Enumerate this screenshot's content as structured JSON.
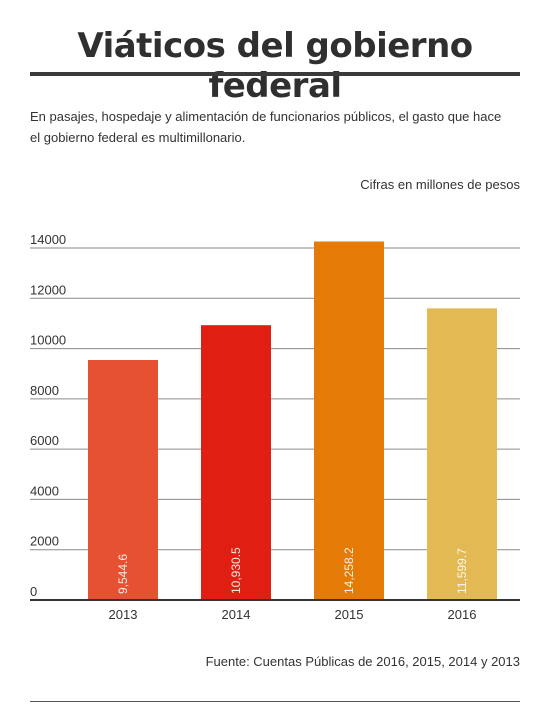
{
  "title": "Viáticos del gobierno federal",
  "subtitle": "En pasajes, hospedaje y alimentación de funcionarios públicos, el gasto que hace el gobierno federal es multimillonario.",
  "unit_note": "Cifras en millones de pesos",
  "source": "Fuente: Cuentas Públicas de 2016, 2015, 2014 y 2013",
  "chart_data": {
    "type": "bar",
    "categories": [
      "2013",
      "2014",
      "2015",
      "2016"
    ],
    "values": [
      9544.6,
      10930.5,
      14258.2,
      11599.7
    ],
    "value_labels": [
      "9,544.6",
      "10,930.5",
      "14,258.2",
      "11,599.7"
    ],
    "colors": [
      "#e65131",
      "#e01f12",
      "#e57a07",
      "#e3b953"
    ],
    "yticks": [
      0,
      2000,
      4000,
      6000,
      8000,
      10000,
      12000,
      14000
    ],
    "ylim": [
      0,
      14000
    ],
    "grid": true
  }
}
